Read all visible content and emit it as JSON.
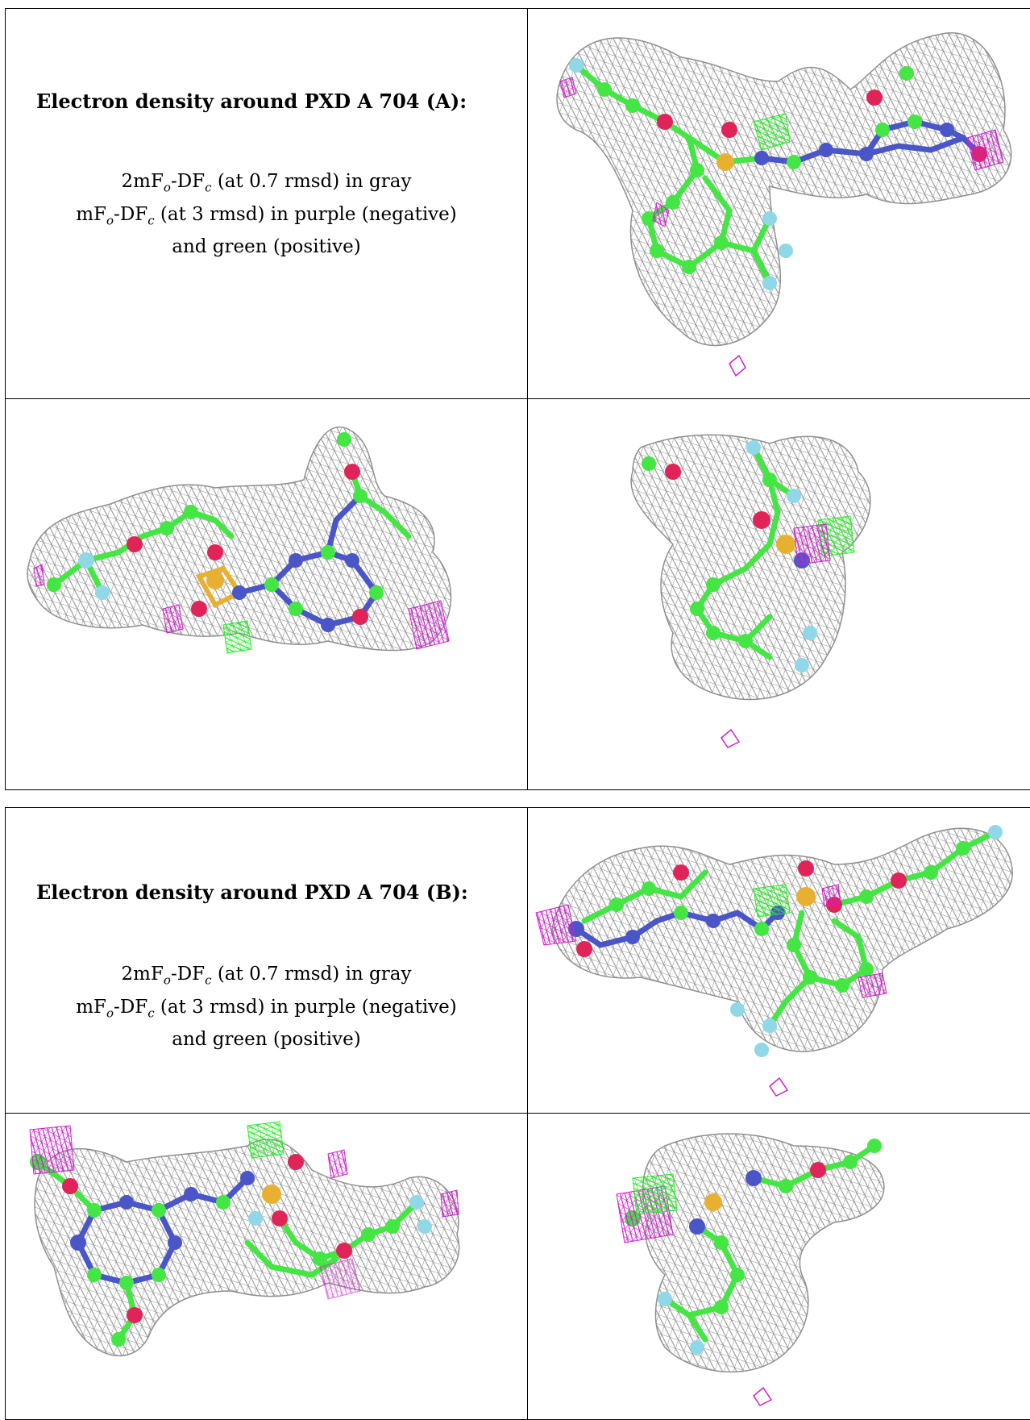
{
  "panels": [
    {
      "heading": "Electron density around PXD A 704 (A):",
      "legend": {
        "line1": {
          "pre": "2mF",
          "sub_o": "o",
          "mid": "-DF",
          "sub_c": "c",
          "post": " (at 0.7 rmsd) in gray"
        },
        "line2": {
          "pre": "mF",
          "sub_o": "o",
          "mid": "-DF",
          "sub_c": "c",
          "post": " (at 3 rmsd) in purple (negative)"
        },
        "line3": "and green (positive)"
      }
    },
    {
      "heading": "Electron density around PXD A 704 (B):",
      "legend": {
        "line1": {
          "pre": "2mF",
          "sub_o": "o",
          "mid": "-DF",
          "sub_c": "c",
          "post": " (at 0.7 rmsd) in gray"
        },
        "line2": {
          "pre": "mF",
          "sub_o": "o",
          "mid": "-DF",
          "sub_c": "c",
          "post": " (at 3 rmsd) in purple (negative)"
        },
        "line3": "and green (positive)"
      }
    }
  ],
  "colors": {
    "mesh_gray": "#9a9a9a",
    "negative_purple": "#cc22cc",
    "positive_green": "#22ee22",
    "carbon_green": "#44e644",
    "nitrogen_blue": "#4a55c8",
    "oxygen_red": "#e0245a",
    "sulfur_yellow": "#e8b030",
    "fluorine_cyan": "#90d8e8"
  }
}
